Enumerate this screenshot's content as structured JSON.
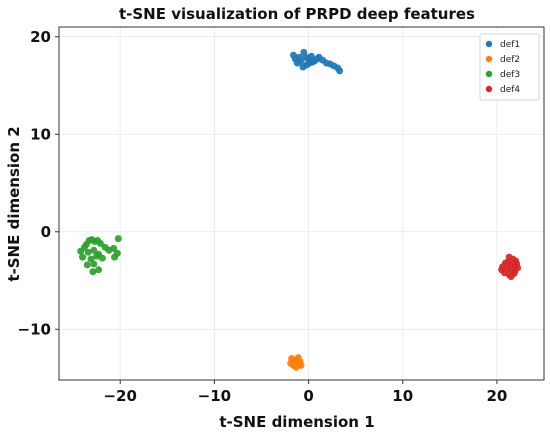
{
  "chart_data": {
    "type": "scatter",
    "title": "t-SNE visualization of PRPD deep features",
    "xlabel": "t-SNE dimension 1",
    "ylabel": "t-SNE dimension 2",
    "xlim": [
      -26.5,
      25
    ],
    "ylim": [
      -15.2,
      21
    ],
    "xticks": [
      -20,
      -10,
      0,
      10,
      20
    ],
    "yticks": [
      -10,
      0,
      10,
      20
    ],
    "xtick_labels": [
      "−20",
      "−10",
      "0",
      "10",
      "20"
    ],
    "ytick_labels": [
      "−10",
      "0",
      "10",
      "20"
    ],
    "grid": true,
    "legend_position": "top-right",
    "series": [
      {
        "name": "def1",
        "color": "#1f77b4",
        "points": [
          [
            -1.6,
            18.1
          ],
          [
            -1.4,
            17.7
          ],
          [
            -1.0,
            17.9
          ],
          [
            -0.8,
            17.5
          ],
          [
            -0.5,
            18.4
          ],
          [
            -0.3,
            17.9
          ],
          [
            0.0,
            17.7
          ],
          [
            0.1,
            17.3
          ],
          [
            0.3,
            18.0
          ],
          [
            -0.6,
            16.9
          ],
          [
            -0.2,
            17.1
          ],
          [
            0.6,
            17.5
          ],
          [
            1.1,
            17.9
          ],
          [
            1.5,
            17.6
          ],
          [
            1.9,
            17.3
          ],
          [
            2.3,
            17.2
          ],
          [
            2.7,
            17.0
          ],
          [
            3.1,
            16.8
          ],
          [
            3.3,
            16.5
          ],
          [
            0.9,
            17.7
          ],
          [
            -1.2,
            17.3
          ],
          [
            0.4,
            17.4
          ]
        ]
      },
      {
        "name": "def2",
        "color": "#ff7f0e",
        "points": [
          [
            -1.8,
            -13.0
          ],
          [
            -1.5,
            -13.4
          ],
          [
            -1.2,
            -13.1
          ],
          [
            -1.0,
            -13.6
          ],
          [
            -1.6,
            -13.7
          ],
          [
            -1.3,
            -13.9
          ],
          [
            -0.9,
            -13.3
          ],
          [
            -1.7,
            -13.2
          ],
          [
            -1.1,
            -12.9
          ],
          [
            -1.4,
            -13.5
          ],
          [
            -0.8,
            -13.7
          ],
          [
            -1.9,
            -13.5
          ],
          [
            -1.2,
            -13.4
          ]
        ]
      },
      {
        "name": "def3",
        "color": "#2ca02c",
        "points": [
          [
            -23.3,
            -0.9
          ],
          [
            -23.0,
            -0.8
          ],
          [
            -22.7,
            -1.0
          ],
          [
            -22.4,
            -0.9
          ],
          [
            -23.6,
            -1.3
          ],
          [
            -22.1,
            -1.2
          ],
          [
            -23.8,
            -1.6
          ],
          [
            -24.2,
            -2.0
          ],
          [
            -23.4,
            -2.1
          ],
          [
            -22.8,
            -1.9
          ],
          [
            -22.3,
            -2.3
          ],
          [
            -21.6,
            -1.6
          ],
          [
            -21.2,
            -1.9
          ],
          [
            -20.7,
            -1.7
          ],
          [
            -20.3,
            -2.2
          ],
          [
            -20.6,
            -2.6
          ],
          [
            -21.9,
            -2.7
          ],
          [
            -22.5,
            -2.5
          ],
          [
            -23.1,
            -2.8
          ],
          [
            -23.5,
            -3.4
          ],
          [
            -22.8,
            -3.3
          ],
          [
            -22.3,
            -3.9
          ],
          [
            -22.9,
            -4.1
          ],
          [
            -20.2,
            -0.7
          ],
          [
            -24.0,
            -2.6
          ]
        ]
      },
      {
        "name": "def4",
        "color": "#d62728",
        "points": [
          [
            21.3,
            -2.6
          ],
          [
            21.7,
            -2.8
          ],
          [
            22.0,
            -3.0
          ],
          [
            20.9,
            -3.2
          ],
          [
            21.4,
            -3.4
          ],
          [
            21.9,
            -3.5
          ],
          [
            22.2,
            -3.7
          ],
          [
            20.6,
            -3.6
          ],
          [
            21.1,
            -3.8
          ],
          [
            21.6,
            -3.9
          ],
          [
            21.9,
            -4.1
          ],
          [
            20.8,
            -4.2
          ],
          [
            21.3,
            -4.4
          ],
          [
            21.5,
            -4.6
          ],
          [
            20.5,
            -3.9
          ],
          [
            22.1,
            -3.3
          ],
          [
            21.2,
            -3.1
          ],
          [
            21.8,
            -4.3
          ]
        ]
      }
    ]
  }
}
